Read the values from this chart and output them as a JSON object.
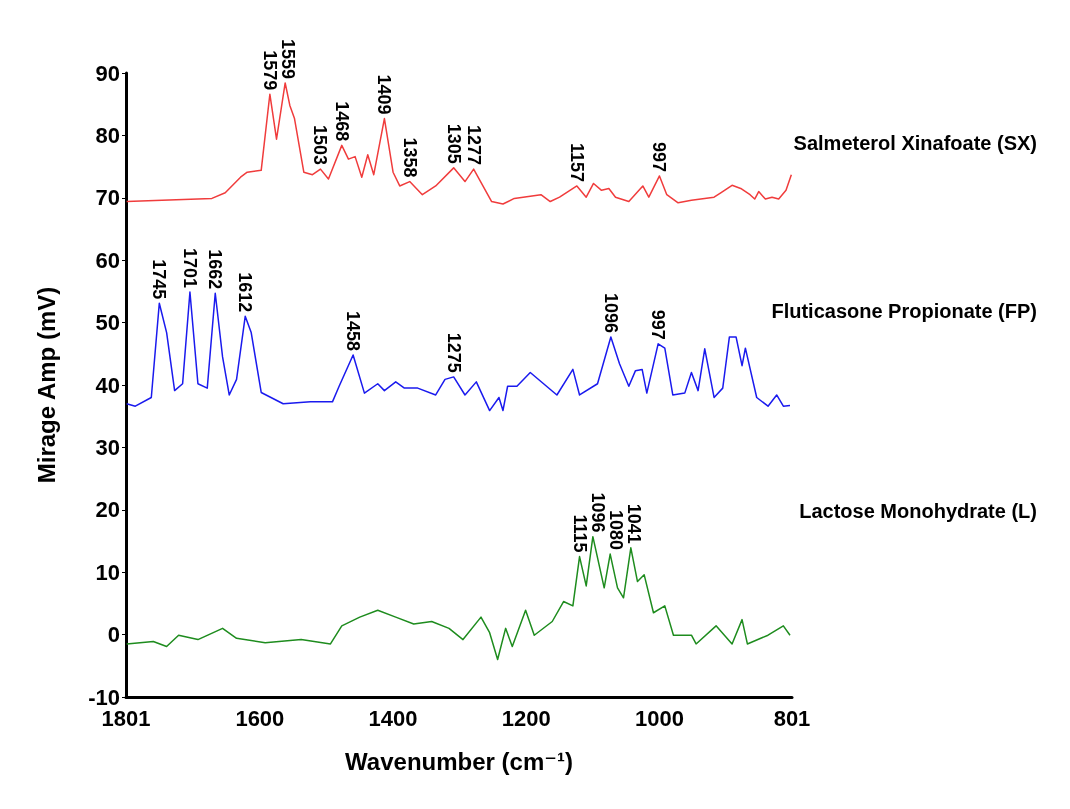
{
  "chart_data": {
    "type": "line",
    "xlabel": "Wavenumber (cm⁻¹)",
    "ylabel": "Mirage Amp (mV)",
    "xlim": [
      1801,
      801
    ],
    "xticks": [
      1801,
      1600,
      1400,
      1200,
      1000,
      801
    ],
    "ylim": [
      -10,
      90
    ],
    "yticks": [
      -10,
      0,
      10,
      20,
      30,
      40,
      50,
      60,
      70,
      80,
      90
    ],
    "grid": false,
    "legend": false,
    "marker": "none",
    "series": [
      {
        "name": "Salmeterol Xinafoate (SX)",
        "color": "#f03c3c",
        "x": [
          1800,
          1672,
          1652,
          1629,
          1619,
          1598,
          1585,
          1575,
          1562,
          1555,
          1548,
          1534,
          1521,
          1509,
          1497,
          1477,
          1467,
          1457,
          1447,
          1438,
          1429,
          1413,
          1400,
          1390,
          1375,
          1356,
          1336,
          1309,
          1292,
          1279,
          1252,
          1235,
          1218,
          1178,
          1164,
          1150,
          1124,
          1110,
          1099,
          1087,
          1076,
          1066,
          1046,
          1025,
          1016,
          1000,
          989,
          972,
          952,
          918,
          908,
          891,
          878,
          864,
          857,
          851,
          841,
          831,
          821,
          810,
          802
        ],
        "values": [
          69.4,
          69.9,
          70.8,
          73.3,
          74.1,
          74.4,
          86.6,
          79.4,
          88.4,
          84.8,
          82.7,
          74.1,
          73.7,
          74.6,
          73,
          78.4,
          76.2,
          76.6,
          73.3,
          76.9,
          73.7,
          82.7,
          74.1,
          71.9,
          72.6,
          70.5,
          71.9,
          74.8,
          72.6,
          74.6,
          69.4,
          69,
          69.9,
          70.5,
          69.4,
          70.1,
          71.9,
          70.1,
          72.3,
          71.2,
          71.5,
          70.1,
          69.4,
          71.9,
          70.1,
          73.5,
          70.5,
          69.2,
          69.6,
          70.1,
          70.8,
          72,
          71.5,
          70.5,
          69.8,
          71,
          69.8,
          70.1,
          69.8,
          71.2,
          73.7
        ]
      },
      {
        "name": "Fluticasone Propionate (FP)",
        "color": "#1a1aee",
        "x": [
          1800,
          1787,
          1763,
          1751,
          1740,
          1728,
          1716,
          1705,
          1693,
          1679,
          1667,
          1656,
          1646,
          1635,
          1622,
          1613,
          1598,
          1565,
          1524,
          1491,
          1481,
          1460,
          1443,
          1423,
          1413,
          1396,
          1383,
          1363,
          1336,
          1322,
          1309,
          1292,
          1275,
          1255,
          1241,
          1235,
          1228,
          1214,
          1194,
          1174,
          1154,
          1130,
          1120,
          1093,
          1073,
          1060,
          1046,
          1036,
          1026,
          1019,
          1002,
          992,
          980,
          962,
          952,
          942,
          932,
          918,
          905,
          895,
          885,
          876,
          871,
          854,
          837,
          824,
          814,
          804
        ],
        "values": [
          37,
          36.6,
          38,
          53.1,
          48.4,
          39.1,
          40.2,
          54.9,
          40.2,
          39.5,
          54.7,
          44.5,
          38.4,
          40.9,
          51,
          48.4,
          38.8,
          37,
          37.3,
          37.3,
          39.8,
          44.8,
          38.7,
          40.2,
          39.1,
          40.5,
          39.5,
          39.5,
          38.4,
          40.9,
          41.3,
          38.4,
          40.5,
          35.9,
          38,
          35.9,
          39.8,
          39.8,
          42,
          40.2,
          38.4,
          42.5,
          38.4,
          40.2,
          47.7,
          43.4,
          39.8,
          42.3,
          42.5,
          38.7,
          46.6,
          45.9,
          38.4,
          38.7,
          42,
          39.1,
          45.8,
          38,
          39.5,
          47.7,
          47.7,
          43.1,
          45.9,
          38,
          36.6,
          38.4,
          36.6,
          36.7
        ]
      },
      {
        "name": "Lactose Monohydrate (L)",
        "color": "#1e8c1e",
        "x": [
          1800,
          1760,
          1740,
          1722,
          1693,
          1656,
          1635,
          1592,
          1538,
          1494,
          1477,
          1450,
          1423,
          1396,
          1369,
          1342,
          1316,
          1295,
          1268,
          1255,
          1243,
          1231,
          1221,
          1201,
          1188,
          1161,
          1144,
          1130,
          1120,
          1110,
          1100,
          1083,
          1074,
          1063,
          1054,
          1043,
          1033,
          1023,
          1009,
          992,
          979,
          952,
          945,
          915,
          891,
          876,
          868,
          837,
          814,
          804
        ],
        "values": [
          -1.5,
          -1.1,
          -1.9,
          -0.1,
          -0.8,
          1,
          -0.6,
          -1.3,
          -0.8,
          -1.5,
          1.4,
          2.8,
          3.9,
          2.8,
          1.7,
          2.1,
          1,
          -0.8,
          2.8,
          0.3,
          -4,
          1,
          -1.9,
          3.9,
          -0.1,
          2.1,
          5.3,
          4.6,
          12.5,
          7.8,
          15.7,
          7.5,
          12.9,
          7.5,
          5.9,
          13.9,
          8.5,
          9.6,
          3.5,
          4.6,
          -0.1,
          -0.1,
          -1.5,
          1.4,
          -1.5,
          2.4,
          -1.5,
          -0.1,
          1.4,
          -0.1
        ]
      }
    ],
    "annotations": [
      {
        "text": "1579",
        "x": 1585,
        "y": 86.6
      },
      {
        "text": "1559",
        "x": 1562,
        "y": 88.4
      },
      {
        "text": "1503",
        "x": 1509,
        "y": 74.6
      },
      {
        "text": "1468",
        "x": 1477,
        "y": 78.4
      },
      {
        "text": "1409",
        "x": 1413,
        "y": 82.7
      },
      {
        "text": "1358",
        "x": 1375,
        "y": 72.6
      },
      {
        "text": "1305",
        "x": 1309,
        "y": 74.8
      },
      {
        "text": "1277",
        "x": 1279,
        "y": 74.6
      },
      {
        "text": "1157",
        "x": 1124,
        "y": 71.9
      },
      {
        "text": "997",
        "x": 1000,
        "y": 73.5
      },
      {
        "text": "1745",
        "x": 1751,
        "y": 53.1
      },
      {
        "text": "1701",
        "x": 1705,
        "y": 54.9
      },
      {
        "text": "1662",
        "x": 1667,
        "y": 54.7
      },
      {
        "text": "1612",
        "x": 1622,
        "y": 51
      },
      {
        "text": "1458",
        "x": 1460,
        "y": 44.8
      },
      {
        "text": "1275",
        "x": 1309,
        "y": 41.3
      },
      {
        "text": "1096",
        "x": 1073,
        "y": 47.7
      },
      {
        "text": "997",
        "x": 1002,
        "y": 46.6
      },
      {
        "text": "1115",
        "x": 1120,
        "y": 12.5
      },
      {
        "text": "1096",
        "x": 1100,
        "y": 15.7
      },
      {
        "text": "1080",
        "x": 1074,
        "y": 12.9
      },
      {
        "text": "1041",
        "x": 1043,
        "y": 13.9
      }
    ]
  }
}
